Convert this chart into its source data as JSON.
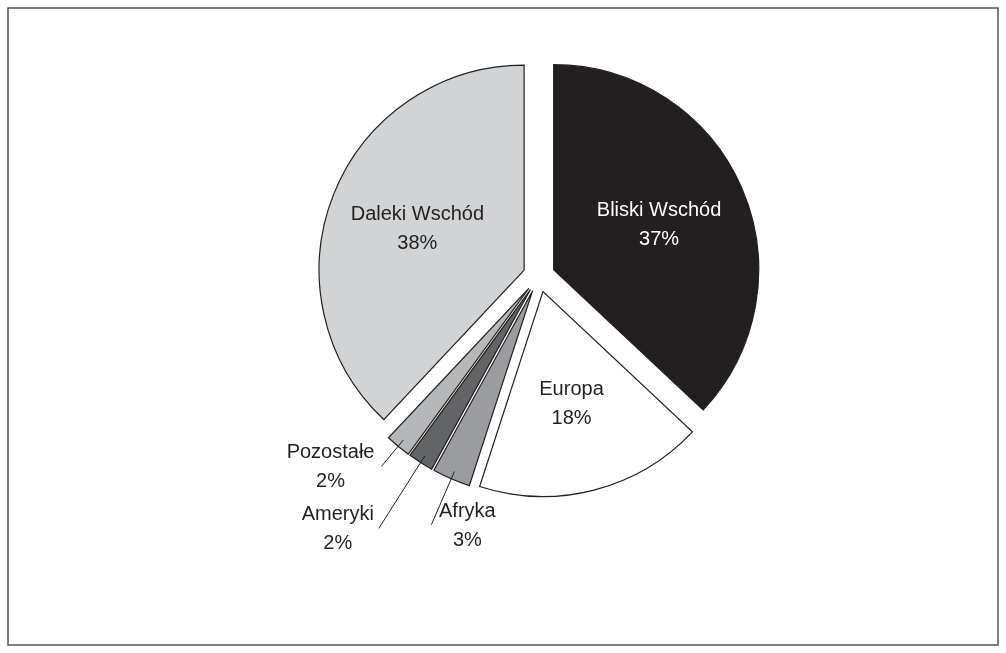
{
  "chart_data": {
    "type": "pie",
    "categories": [
      "Bliski Wschód",
      "Europa",
      "Afryka",
      "Ameryki",
      "Pozostałe",
      "Daleki Wschód"
    ],
    "values": [
      37,
      18,
      3,
      2,
      2,
      38
    ],
    "colors": [
      "#231f20",
      "#ffffff",
      "#9a9c9f",
      "#636466",
      "#b5b7b9",
      "#d1d3d4"
    ],
    "value_labels": [
      "37%",
      "18%",
      "3%",
      "2%",
      "2%",
      "38%"
    ]
  }
}
